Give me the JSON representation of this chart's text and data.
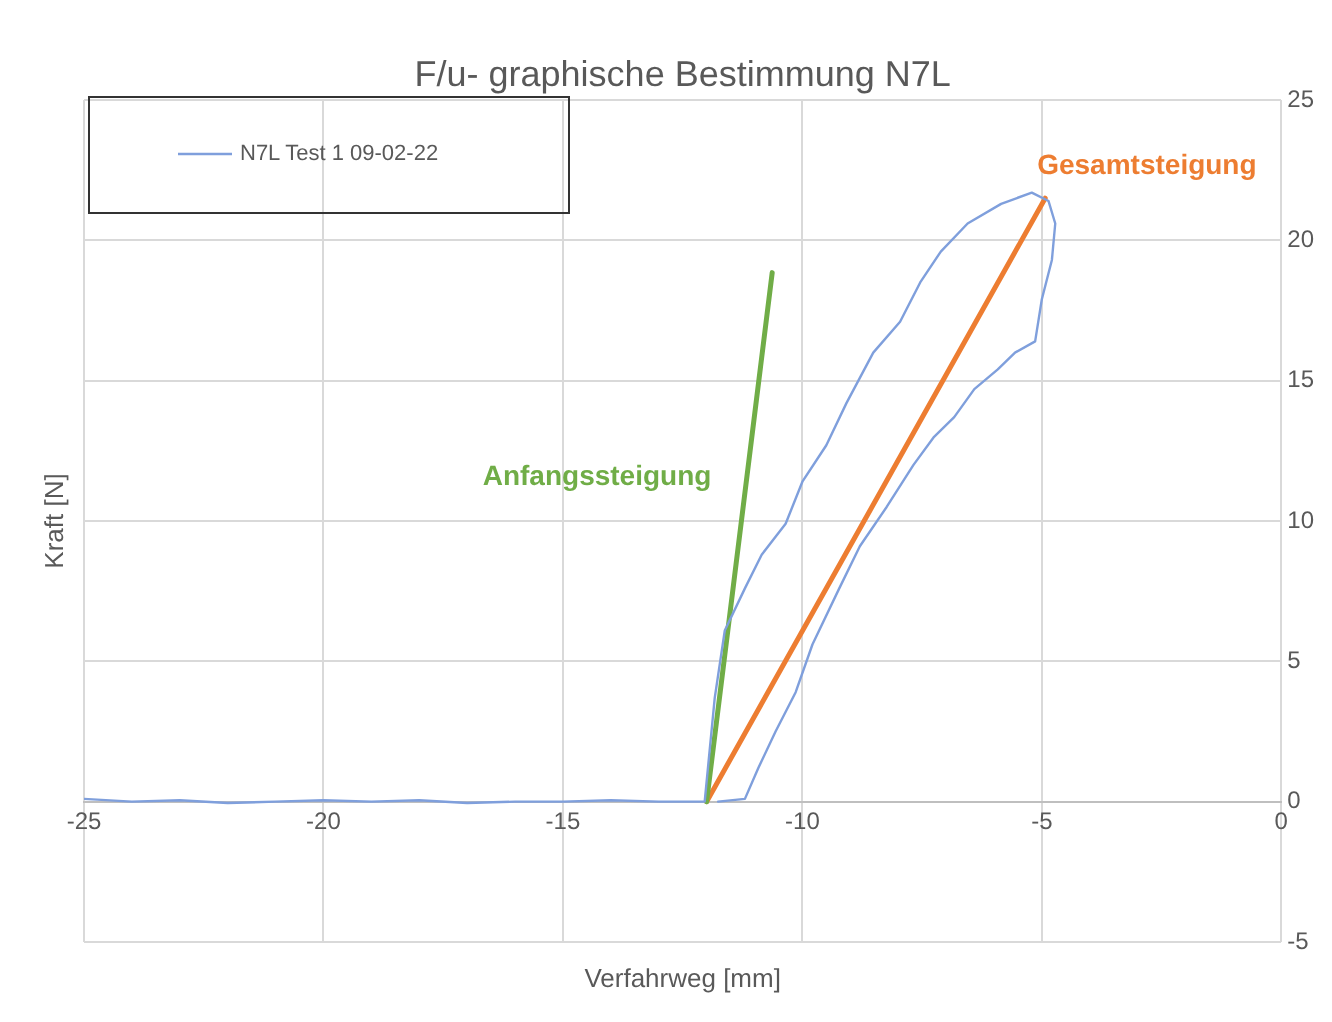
{
  "chart_data": {
    "type": "line",
    "title": "F/u- graphische Bestimmung N7L",
    "xlabel": "Verfahrweg [mm]",
    "ylabel": "Kraft [N]",
    "xlim": [
      -25,
      0
    ],
    "xticks": [
      -25,
      -20,
      -15,
      -10,
      -5,
      0
    ],
    "ylim": [
      -5,
      25
    ],
    "yticks": [
      -5,
      0,
      5,
      10,
      15,
      20,
      25
    ],
    "grid": true,
    "legend": "top left",
    "marker": "none",
    "series": [
      {
        "name": "N7L Test 1 09-02-22",
        "color": "#7f9fdc",
        "x": [
          -25,
          -24,
          -23,
          -22,
          -21,
          -20,
          -19,
          -18,
          -17,
          -16,
          -15,
          -14,
          -13,
          -12.04,
          -11.83,
          -11.62,
          -11.2,
          -10.85,
          -10.35,
          -10,
          -9.5,
          -9.08,
          -8.52,
          -7.96,
          -7.54,
          -7.11,
          -6.55,
          -5.85,
          -5.21,
          -4.86,
          -4.72,
          -4.79,
          -5,
          -5.14,
          -5.56,
          -5.92,
          -6.41,
          -6.83,
          -7.25,
          -7.68,
          -8.24,
          -8.8,
          -9.23,
          -9.79,
          -10.14,
          -10.56,
          -10.92,
          -11.2,
          -11.76
        ],
        "values": [
          0.1,
          0,
          0.05,
          -0.05,
          0,
          0.05,
          0,
          0.05,
          -0.05,
          0,
          0,
          0.05,
          0,
          0,
          3.7,
          6.1,
          7.6,
          8.8,
          9.9,
          11.4,
          12.7,
          14.2,
          16,
          17.1,
          18.5,
          19.6,
          20.6,
          21.3,
          21.7,
          21.4,
          20.6,
          19.3,
          17.9,
          16.4,
          16,
          15.4,
          14.7,
          13.7,
          13,
          12,
          10.5,
          9.1,
          7.6,
          5.6,
          3.9,
          2.5,
          1.2,
          0.1,
          0
        ]
      },
      {
        "color": "#70ad47",
        "x": [
          -12,
          -10.63
        ],
        "values": [
          0,
          18.85
        ]
      },
      {
        "color": "#ed7d31",
        "x": [
          -12,
          -4.93
        ],
        "values": [
          0,
          21.5
        ]
      }
    ],
    "annotations": [
      "Anfangssteigung",
      "Gesamtsteigung"
    ]
  }
}
